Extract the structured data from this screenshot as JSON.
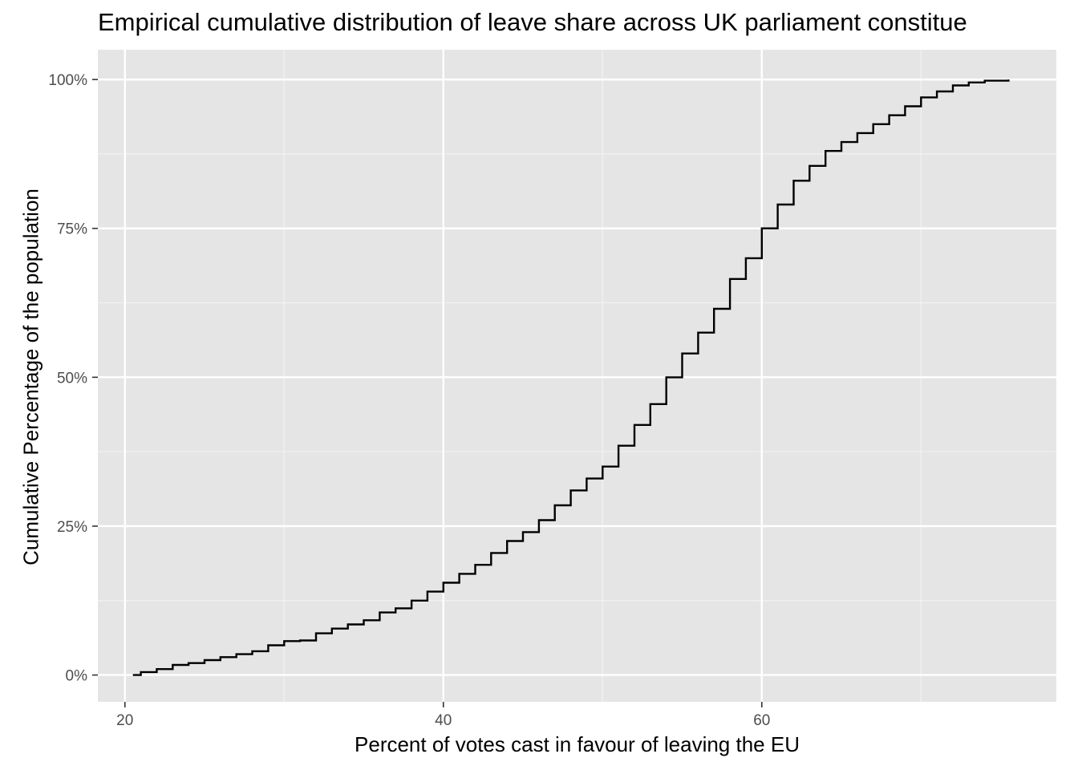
{
  "chart_data": {
    "type": "line",
    "title": "Empirical cumulative distribution of leave share across UK parliament constitue",
    "xlabel": "Percent of votes cast in favour of leaving the EU",
    "ylabel": "Cumulative Percentage of the population",
    "xlim": [
      18.3,
      78.5
    ],
    "ylim": [
      -0.045,
      1.05
    ],
    "x_ticks": [
      {
        "value": 20,
        "label": "20"
      },
      {
        "value": 40,
        "label": "40"
      },
      {
        "value": 60,
        "label": "60"
      }
    ],
    "x_minor_ticks": [
      30,
      50,
      70
    ],
    "y_ticks": [
      {
        "value": 0,
        "label": "0%"
      },
      {
        "value": 0.25,
        "label": "25%"
      },
      {
        "value": 0.5,
        "label": "50%"
      },
      {
        "value": 0.75,
        "label": "75%"
      },
      {
        "value": 1.0,
        "label": "100%"
      }
    ],
    "y_minor_ticks": [
      0.125,
      0.375,
      0.625,
      0.875
    ],
    "grid": true,
    "series": [
      {
        "color": "#000000",
        "points": [
          [
            20.5,
            0.0
          ],
          [
            21.0,
            0.005
          ],
          [
            22.0,
            0.01
          ],
          [
            23.0,
            0.017
          ],
          [
            24.0,
            0.02
          ],
          [
            25.0,
            0.025
          ],
          [
            26.0,
            0.03
          ],
          [
            27.0,
            0.035
          ],
          [
            28.0,
            0.04
          ],
          [
            29.0,
            0.05
          ],
          [
            30.0,
            0.057
          ],
          [
            31.0,
            0.058
          ],
          [
            32.0,
            0.07
          ],
          [
            33.0,
            0.078
          ],
          [
            34.0,
            0.085
          ],
          [
            35.0,
            0.092
          ],
          [
            36.0,
            0.105
          ],
          [
            37.0,
            0.112
          ],
          [
            38.0,
            0.125
          ],
          [
            39.0,
            0.14
          ],
          [
            40.0,
            0.155
          ],
          [
            41.0,
            0.17
          ],
          [
            42.0,
            0.185
          ],
          [
            43.0,
            0.205
          ],
          [
            44.0,
            0.225
          ],
          [
            45.0,
            0.24
          ],
          [
            46.0,
            0.26
          ],
          [
            47.0,
            0.285
          ],
          [
            48.0,
            0.31
          ],
          [
            49.0,
            0.33
          ],
          [
            50.0,
            0.35
          ],
          [
            51.0,
            0.385
          ],
          [
            52.0,
            0.42
          ],
          [
            53.0,
            0.455
          ],
          [
            54.0,
            0.5
          ],
          [
            55.0,
            0.54
          ],
          [
            56.0,
            0.575
          ],
          [
            57.0,
            0.615
          ],
          [
            58.0,
            0.665
          ],
          [
            59.0,
            0.7
          ],
          [
            60.0,
            0.75
          ],
          [
            61.0,
            0.79
          ],
          [
            62.0,
            0.83
          ],
          [
            63.0,
            0.855
          ],
          [
            64.0,
            0.88
          ],
          [
            65.0,
            0.895
          ],
          [
            66.0,
            0.91
          ],
          [
            67.0,
            0.925
          ],
          [
            68.0,
            0.94
          ],
          [
            69.0,
            0.955
          ],
          [
            70.0,
            0.97
          ],
          [
            71.0,
            0.98
          ],
          [
            72.0,
            0.99
          ],
          [
            73.0,
            0.995
          ],
          [
            74.0,
            0.998
          ],
          [
            75.5,
            1.0
          ]
        ]
      }
    ]
  }
}
